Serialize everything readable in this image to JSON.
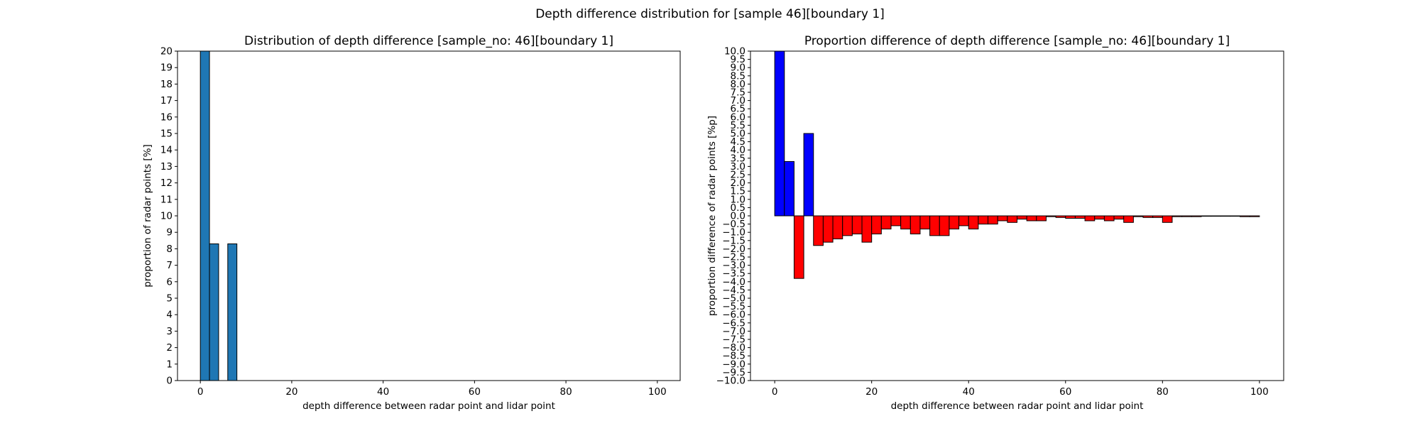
{
  "figure": {
    "suptitle": "Depth difference distribution for [sample 46][boundary 1]"
  },
  "chart_data": [
    {
      "type": "bar",
      "title": "Distribution of depth difference [sample_no: 46][boundary 1]",
      "xlabel": "depth difference between radar point and lidar point",
      "ylabel": "proportion of radar points [%]",
      "xlim": [
        -5,
        105
      ],
      "ylim": [
        0,
        20
      ],
      "xticks": [
        0,
        20,
        40,
        60,
        80,
        100
      ],
      "yticks": [
        0,
        1,
        2,
        3,
        4,
        5,
        6,
        7,
        8,
        9,
        10,
        11,
        12,
        13,
        14,
        15,
        16,
        17,
        18,
        19,
        20
      ],
      "bar_width": 2,
      "bar_color": "#1f77b4",
      "x": [
        1,
        3,
        7
      ],
      "values": [
        20,
        8.3,
        8.3
      ]
    },
    {
      "type": "bar",
      "title": "Proportion difference of depth difference [sample_no: 46][boundary 1]",
      "xlabel": "depth difference between radar point and lidar point",
      "ylabel": "proportion difference of radar points [%p]",
      "xlim": [
        -5,
        105
      ],
      "ylim": [
        -10,
        10
      ],
      "xticks": [
        0,
        20,
        40,
        60,
        80,
        100
      ],
      "yticks": [
        -10.0,
        -9.5,
        -9.0,
        -8.5,
        -8.0,
        -7.5,
        -7.0,
        -6.5,
        -6.0,
        -5.5,
        -5.0,
        -4.5,
        -4.0,
        -3.5,
        -3.0,
        -2.5,
        -2.0,
        -1.5,
        -1.0,
        -0.5,
        0.0,
        0.5,
        1.0,
        1.5,
        2.0,
        2.5,
        3.0,
        3.5,
        4.0,
        4.5,
        5.0,
        5.5,
        6.0,
        6.5,
        7.0,
        7.5,
        8.0,
        8.5,
        9.0,
        9.5,
        10.0
      ],
      "bar_width": 2,
      "positive_color": "#0000ff",
      "negative_color": "#ff0000",
      "x": [
        1,
        3,
        5,
        7,
        9,
        11,
        13,
        15,
        17,
        19,
        21,
        23,
        25,
        27,
        29,
        31,
        33,
        35,
        37,
        39,
        41,
        43,
        45,
        47,
        49,
        51,
        53,
        55,
        57,
        59,
        61,
        63,
        65,
        67,
        69,
        71,
        73,
        75,
        77,
        79,
        81,
        83,
        85,
        87,
        89,
        91,
        93,
        95,
        97,
        99
      ],
      "values": [
        10.0,
        3.3,
        -3.8,
        5.0,
        -1.8,
        -1.6,
        -1.4,
        -1.2,
        -1.1,
        -1.6,
        -1.1,
        -0.8,
        -0.6,
        -0.8,
        -1.1,
        -0.8,
        -1.2,
        -1.2,
        -0.8,
        -0.6,
        -0.8,
        -0.5,
        -0.5,
        -0.3,
        -0.4,
        -0.2,
        -0.3,
        -0.3,
        -0.05,
        -0.1,
        -0.15,
        -0.15,
        -0.3,
        -0.2,
        -0.3,
        -0.2,
        -0.4,
        -0.05,
        -0.1,
        -0.1,
        -0.4,
        -0.05,
        -0.05,
        -0.05,
        0,
        0,
        0,
        0,
        -0.05,
        -0.05
      ]
    }
  ]
}
